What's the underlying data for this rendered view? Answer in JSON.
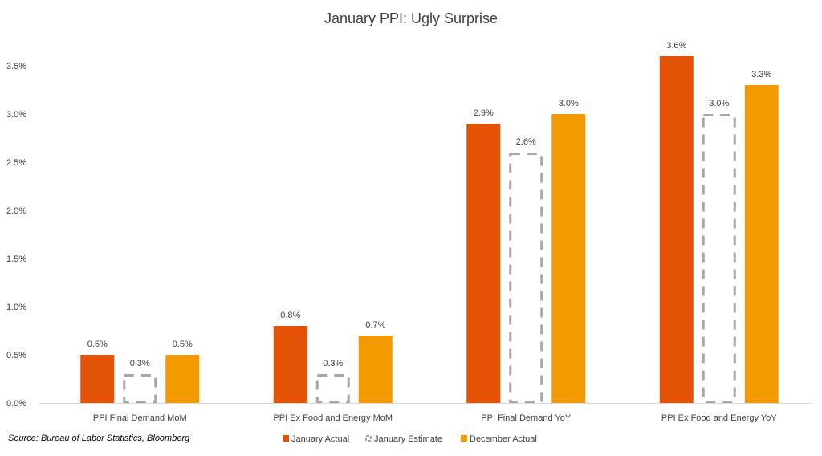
{
  "source": "Source: Bureau of Labor Statistics, Bloomberg",
  "colors": {
    "january_actual": "#E35205",
    "january_estimate": "#A6A6A6",
    "december_actual": "#F29A00"
  },
  "chart_data": {
    "type": "bar",
    "title": "January PPI: Ugly Surprise",
    "categories": [
      "PPI Final Demand MoM",
      "PPI Ex Food and Energy MoM",
      "PPI Final Demand YoY",
      "PPI Ex Food and Energy YoY"
    ],
    "series": [
      {
        "name": "January Actual",
        "values": [
          0.5,
          0.8,
          2.9,
          3.6
        ],
        "style": "solid"
      },
      {
        "name": "January Estimate",
        "values": [
          0.3,
          0.3,
          2.6,
          3.0
        ],
        "style": "dashed-outline"
      },
      {
        "name": "December Actual",
        "values": [
          0.5,
          0.7,
          3.0,
          3.3
        ],
        "style": "solid"
      }
    ],
    "ylim": [
      0,
      3.5
    ],
    "yticks": [
      "0.0%",
      "0.5%",
      "1.0%",
      "1.5%",
      "2.0%",
      "2.5%",
      "3.0%",
      "3.5%"
    ],
    "grid": false,
    "legend": "bottom",
    "unit": "%"
  }
}
